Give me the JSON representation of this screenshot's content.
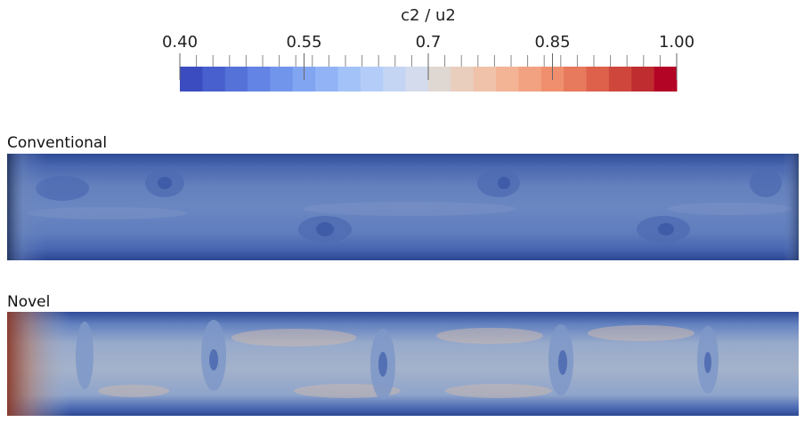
{
  "colorbar": {
    "title": "c2 / u2",
    "ticks": [
      {
        "value": 0.4,
        "label": "0.40"
      },
      0.55,
      0.7,
      0.85,
      {
        "value": 1.0,
        "label": "1.00"
      }
    ],
    "colors": [
      "#3b4cc0",
      "#4760cd",
      "#5572d9",
      "#6384e4",
      "#7295ec",
      "#82a5f2",
      "#92b4f6",
      "#a3c2f8",
      "#b4cdf8",
      "#c4d5f3",
      "#d3dbec",
      "#dfd7d1",
      "#e9cebd",
      "#f0c2a9",
      "#f3b395",
      "#f3a281",
      "#ef8f6e",
      "#e7795c",
      "#dd614b",
      "#cf473c",
      "#c02d30",
      "#b40426"
    ]
  },
  "panels": [
    {
      "label": "Conventional"
    },
    {
      "label": "Novel"
    }
  ]
}
